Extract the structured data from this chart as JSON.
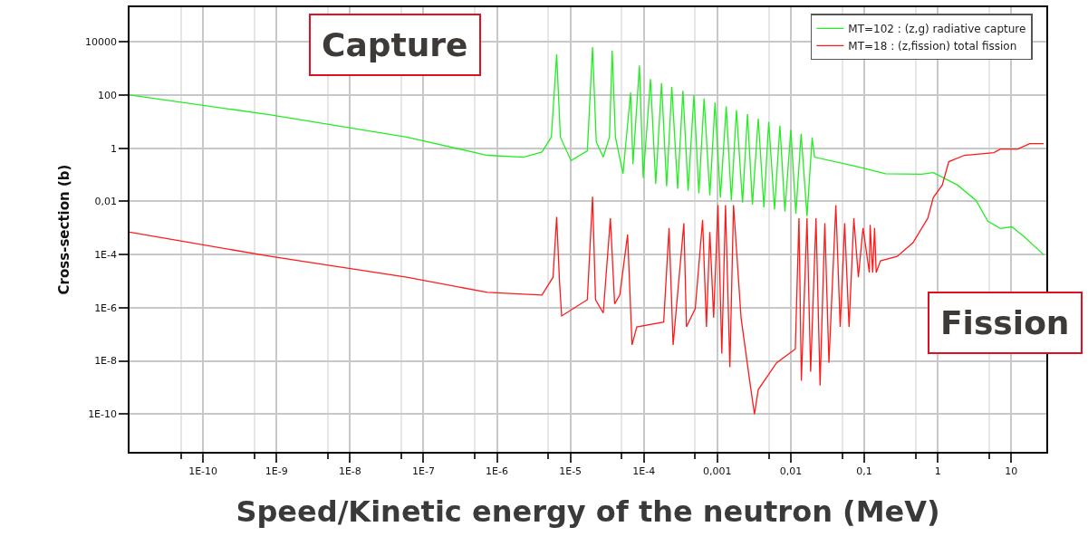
{
  "chart_data": {
    "type": "line",
    "xlabel": "Speed/Kinetic energy of the neutron (MeV)",
    "ylabel": "Cross-section (b)",
    "annotations": [
      "Capture",
      "Fission"
    ],
    "log": "xy",
    "grid": true,
    "legend": "top right",
    "marker": "none",
    "line_style": "solid",
    "xlim": [
      1e-11,
      30
    ],
    "ylim": [
      3.8e-12,
      200000
    ],
    "xticks": [
      {
        "value": 5e-11,
        "label": null
      },
      {
        "value": 1e-10,
        "label": "1E-10"
      },
      {
        "value": 5e-10,
        "label": null
      },
      {
        "value": 1e-09,
        "label": "1E-9"
      },
      {
        "value": 5e-09,
        "label": null
      },
      {
        "value": 1e-08,
        "label": "1E-8"
      },
      {
        "value": 5e-08,
        "label": null
      },
      {
        "value": 1e-07,
        "label": "1E-7"
      },
      {
        "value": 5e-07,
        "label": null
      },
      {
        "value": 1e-06,
        "label": "1E-6"
      },
      {
        "value": 5e-06,
        "label": null
      },
      {
        "value": 1e-05,
        "label": "1E-5"
      },
      {
        "value": 5e-05,
        "label": null
      },
      {
        "value": 0.0001,
        "label": "1E-4"
      },
      {
        "value": 0.0005,
        "label": null
      },
      {
        "value": 0.001,
        "label": "0,001"
      },
      {
        "value": 0.005,
        "label": null
      },
      {
        "value": 0.01,
        "label": "0,01"
      },
      {
        "value": 0.05,
        "label": null
      },
      {
        "value": 0.1,
        "label": "0,1"
      },
      {
        "value": 0.5,
        "label": null
      },
      {
        "value": 1,
        "label": "1"
      },
      {
        "value": 5,
        "label": null
      },
      {
        "value": 10,
        "label": "10"
      }
    ],
    "yticks": [
      {
        "value": 10000,
        "label": "10000"
      },
      {
        "value": 100,
        "label": "100"
      },
      {
        "value": 1,
        "label": "1"
      },
      {
        "value": 0.01,
        "label": "0,01"
      },
      {
        "value": 0.0001,
        "label": "1E-4"
      },
      {
        "value": 1e-06,
        "label": "1E-6"
      },
      {
        "value": 1e-08,
        "label": "1E-8"
      },
      {
        "value": 1e-10,
        "label": "1E-10"
      }
    ],
    "series": [
      {
        "name": "MT=102 : (z,g) radiative capture",
        "color": "#22ee22",
        "x": [
          1e-11,
          8.3e-10,
          5.9e-08,
          7.4e-07,
          2.3e-06,
          4.1e-06,
          5.5e-06,
          6.5e-06,
          7.3e-06,
          1.02e-05,
          1.7e-05,
          2e-05,
          2.25e-05,
          2.8e-05,
          3.4e-05,
          3.7e-05,
          4.1e-05,
          5.2e-05,
          6.6e-05,
          7.1e-05,
          8.7e-05,
          9.8e-05,
          0.000123,
          0.000145,
          0.000174,
          0.000204,
          0.00024,
          0.000288,
          0.00034,
          0.0004,
          0.00048,
          0.00056,
          0.00066,
          0.00079,
          0.00093,
          0.0011,
          0.00132,
          0.00155,
          0.00182,
          0.0022,
          0.00257,
          0.003,
          0.0036,
          0.0043,
          0.005,
          0.006,
          0.0071,
          0.0083,
          0.01,
          0.0117,
          0.0138,
          0.0166,
          0.0195,
          0.021,
          0.076,
          0.195,
          0.6,
          0.87,
          1.86,
          3.3,
          4.8,
          7.1,
          10.2,
          14.8,
          27.5
        ],
        "values": [
          100,
          18,
          2.6,
          0.54,
          0.46,
          0.72,
          2.6,
          3400,
          2.6,
          0.34,
          0.8,
          6300,
          1.7,
          0.46,
          2.6,
          4600,
          2.6,
          0.11,
          126,
          0.25,
          1300,
          0.076,
          400,
          0.046,
          280,
          0.037,
          200,
          0.03,
          145,
          0.025,
          100,
          0.02,
          74,
          0.017,
          52,
          0.014,
          37,
          0.011,
          27,
          0.009,
          19,
          0.0076,
          13,
          0.006,
          9.8,
          0.005,
          7,
          0.0042,
          4.9,
          0.0034,
          3.5,
          0.0028,
          2.5,
          0.46,
          0.21,
          0.11,
          0.105,
          0.12,
          0.041,
          0.011,
          0.0018,
          0.00095,
          0.0011,
          0.00048,
          0.0001
        ]
      },
      {
        "name": "MT=18 : (z,fission) total fission",
        "color": "#ff1a1a",
        "x": [
          1e-11,
          8.3e-10,
          5.9e-08,
          7.4e-07,
          4.1e-06,
          5.8e-06,
          6.5e-06,
          7.1e-06,
          7.6e-06,
          1.7e-05,
          2e-05,
          2.2e-05,
          2.8e-05,
          3.5e-05,
          4e-05,
          4.7e-05,
          6e-05,
          6.9e-05,
          8e-05,
          0.000186,
          0.00022,
          0.00025,
          0.00035,
          0.00038,
          0.0005,
          0.00063,
          0.00071,
          0.00079,
          0.00089,
          0.00102,
          0.00115,
          0.00129,
          0.00148,
          0.00166,
          0.0021,
          0.00275,
          0.0032,
          0.0036,
          0.0064,
          0.0115,
          0.0129,
          0.0139,
          0.0166,
          0.0186,
          0.022,
          0.025,
          0.029,
          0.033,
          0.041,
          0.047,
          0.054,
          0.062,
          0.072,
          0.083,
          0.096,
          0.117,
          0.12,
          0.13,
          0.138,
          0.145,
          0.166,
          0.28,
          0.46,
          0.73,
          0.87,
          1.15,
          1.41,
          2.3,
          5.8,
          7.1,
          12.3,
          17.8,
          27.5
        ],
        "values": [
          0.0007,
          8.5e-05,
          1.4e-05,
          3.8e-06,
          3e-06,
          1.4e-05,
          0.0026,
          1e-05,
          4.9e-07,
          2e-06,
          0.015,
          2e-06,
          6.3e-07,
          0.0023,
          1.4e-06,
          3e-06,
          0.00056,
          4e-08,
          1.9e-07,
          2.9e-07,
          0.001,
          4e-08,
          0.0015,
          1.9e-07,
          9.3e-07,
          0.002,
          1.9e-07,
          0.0007,
          4.3e-07,
          0.0072,
          1.9e-08,
          0.0072,
          5.8e-09,
          0.0072,
          4.3e-07,
          1.8e-09,
          1e-10,
          8.3e-10,
          8.5e-09,
          2.8e-08,
          0.0023,
          1.8e-09,
          0.0023,
          3.9e-09,
          0.0023,
          1.2e-09,
          0.0015,
          8.5e-09,
          0.0072,
          1.9e-07,
          0.0015,
          1.9e-07,
          0.0023,
          1.4e-05,
          0.001,
          2.1e-05,
          0.0013,
          2.1e-05,
          0.001,
          2.1e-05,
          5.8e-05,
          8.5e-05,
          0.00028,
          0.0023,
          0.014,
          0.041,
          0.31,
          0.54,
          0.68,
          0.93,
          0.93,
          1.48,
          1.48
        ]
      }
    ]
  }
}
